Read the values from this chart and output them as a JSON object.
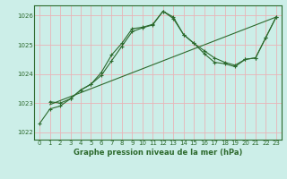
{
  "xlabel": "Graphe pression niveau de la mer (hPa)",
  "background_color": "#cceee8",
  "grid_color": "#e8b4b8",
  "line_color": "#2d6a2d",
  "border_color": "#2d6a2d",
  "fig_bg": "#cceee8",
  "xlim": [
    -0.5,
    23.5
  ],
  "ylim": [
    1021.75,
    1026.35
  ],
  "yticks": [
    1022,
    1023,
    1024,
    1025,
    1026
  ],
  "xticks": [
    0,
    1,
    2,
    3,
    4,
    5,
    6,
    7,
    8,
    9,
    10,
    11,
    12,
    13,
    14,
    15,
    16,
    17,
    18,
    19,
    20,
    21,
    22,
    23
  ],
  "series1_x": [
    0,
    1,
    2,
    3,
    4,
    5,
    6,
    7,
    8,
    9,
    10,
    11,
    12,
    13,
    14,
    15,
    16,
    17,
    18,
    19,
    20,
    21,
    22,
    23
  ],
  "series1_y": [
    1022.3,
    1022.8,
    1022.9,
    1023.15,
    1023.45,
    1023.65,
    1024.05,
    1024.65,
    1025.05,
    1025.55,
    1025.6,
    1025.7,
    1026.15,
    1025.95,
    1025.35,
    1025.05,
    1024.8,
    1024.55,
    1024.4,
    1024.3,
    1024.5,
    1024.55,
    1025.25,
    1025.95
  ],
  "series2_x": [
    1,
    23
  ],
  "series2_y": [
    1022.95,
    1025.95
  ],
  "series3_x": [
    1,
    2,
    3,
    4,
    5,
    6,
    7,
    8,
    9,
    10,
    11,
    12,
    13,
    14,
    15,
    16,
    17,
    18,
    19,
    20,
    21,
    22,
    23
  ],
  "series3_y": [
    1023.05,
    1023.0,
    1023.15,
    1023.45,
    1023.65,
    1023.95,
    1024.45,
    1024.95,
    1025.45,
    1025.58,
    1025.68,
    1026.15,
    1025.9,
    1025.35,
    1025.05,
    1024.7,
    1024.4,
    1024.35,
    1024.25,
    1024.5,
    1024.55,
    1025.25,
    1025.95
  ],
  "xlabel_fontsize": 6.0,
  "tick_labelsize": 5.0,
  "lw": 0.8,
  "marker_size": 3.5
}
